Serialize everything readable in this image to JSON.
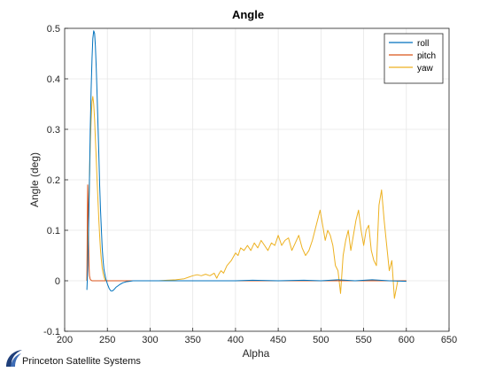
{
  "chart_data": {
    "type": "line",
    "title": "Angle",
    "xlabel": "Alpha",
    "ylabel": "Angle (deg)",
    "xlim": [
      200,
      650
    ],
    "ylim": [
      -0.1,
      0.5
    ],
    "xticks": [
      200,
      250,
      300,
      350,
      400,
      450,
      500,
      550,
      600,
      650
    ],
    "yticks": [
      -0.1,
      0,
      0.1,
      0.2,
      0.3,
      0.4,
      0.5
    ],
    "ytick_labels": [
      "-0.1",
      "0",
      "0.1",
      "0.2",
      "0.3",
      "0.4",
      "0.5"
    ],
    "grid": true,
    "legend_position": "top-right",
    "series": [
      {
        "name": "roll",
        "color": "#0072BD",
        "x": [
          226,
          227,
          228,
          229,
          230,
          231,
          232,
          233,
          234,
          235,
          236,
          237,
          238,
          239,
          240,
          241,
          242,
          243,
          244,
          245,
          246,
          248,
          250,
          252,
          254,
          256,
          258,
          260,
          264,
          268,
          272,
          276,
          280,
          290,
          300,
          320,
          350,
          380,
          400,
          420,
          450,
          480,
          500,
          520,
          540,
          560,
          580,
          600
        ],
        "y": [
          -0.018,
          0.02,
          0.1,
          0.2,
          0.3,
          0.38,
          0.44,
          0.48,
          0.495,
          0.49,
          0.465,
          0.42,
          0.37,
          0.31,
          0.25,
          0.19,
          0.14,
          0.1,
          0.065,
          0.04,
          0.022,
          0.005,
          -0.006,
          -0.015,
          -0.02,
          -0.02,
          -0.017,
          -0.013,
          -0.008,
          -0.004,
          -0.002,
          -0.001,
          0,
          0,
          0,
          0,
          0,
          0,
          0,
          0.001,
          0,
          0.001,
          0,
          0.002,
          0,
          0.002,
          0,
          -0.001
        ]
      },
      {
        "name": "pitch",
        "color": "#D95319",
        "x": [
          226,
          226.5,
          227,
          227.5,
          228,
          228.5,
          229,
          230,
          231,
          232,
          234,
          236,
          240,
          245,
          250,
          260,
          280,
          300,
          320,
          350,
          380,
          400,
          420,
          450,
          480,
          500,
          520,
          540,
          560,
          580,
          600
        ],
        "y": [
          0,
          0.12,
          0.19,
          0.15,
          0.08,
          0.03,
          0.01,
          0.003,
          0.001,
          0,
          0,
          0,
          0,
          0,
          0,
          0,
          0,
          0,
          0,
          0,
          0,
          0,
          0,
          0,
          0,
          0,
          0,
          0,
          0,
          0,
          0
        ]
      },
      {
        "name": "yaw",
        "color": "#EDB120",
        "x": [
          226,
          227,
          228,
          229,
          230,
          231,
          232,
          233,
          234,
          235,
          236,
          237,
          238,
          239,
          240,
          241,
          242,
          243,
          244,
          245,
          246,
          247,
          248,
          250,
          255,
          260,
          270,
          280,
          290,
          300,
          310,
          320,
          330,
          340,
          345,
          350,
          355,
          360,
          365,
          370,
          375,
          378,
          380,
          383,
          386,
          390,
          395,
          400,
          403,
          406,
          410,
          414,
          418,
          422,
          426,
          430,
          434,
          438,
          442,
          446,
          450,
          454,
          458,
          462,
          466,
          470,
          474,
          478,
          482,
          486,
          490,
          493,
          496,
          499,
          502,
          505,
          508,
          511,
          514,
          517,
          520,
          523,
          526,
          529,
          532,
          535,
          538,
          541,
          544,
          547,
          550,
          553,
          556,
          559,
          562,
          565,
          568,
          571,
          574,
          577,
          580,
          583,
          586,
          590,
          595,
          600
        ],
        "y": [
          0,
          0.05,
          0.12,
          0.2,
          0.27,
          0.32,
          0.355,
          0.365,
          0.35,
          0.32,
          0.28,
          0.24,
          0.2,
          0.16,
          0.12,
          0.09,
          0.06,
          0.04,
          0.025,
          0.015,
          0.008,
          0.003,
          0,
          0,
          0,
          0,
          0,
          0,
          0,
          0,
          0,
          0.001,
          0.002,
          0.004,
          0.007,
          0.01,
          0.012,
          0.01,
          0.013,
          0.01,
          0.015,
          0.005,
          0.012,
          0.02,
          0.015,
          0.03,
          0.04,
          0.055,
          0.05,
          0.065,
          0.06,
          0.07,
          0.06,
          0.075,
          0.065,
          0.08,
          0.07,
          0.06,
          0.075,
          0.07,
          0.09,
          0.07,
          0.08,
          0.085,
          0.06,
          0.075,
          0.09,
          0.065,
          0.05,
          0.06,
          0.08,
          0.1,
          0.12,
          0.14,
          0.11,
          0.08,
          0.1,
          0.09,
          0.07,
          0.03,
          0.02,
          -0.025,
          0.05,
          0.08,
          0.1,
          0.06,
          0.09,
          0.12,
          0.14,
          0.1,
          0.07,
          0.1,
          0.11,
          0.06,
          0.04,
          0.03,
          0.15,
          0.18,
          0.12,
          0.07,
          0.02,
          0.04,
          -0.035,
          0,
          0,
          0
        ]
      }
    ]
  },
  "logo": {
    "text": "Princeton Satellite Systems"
  }
}
